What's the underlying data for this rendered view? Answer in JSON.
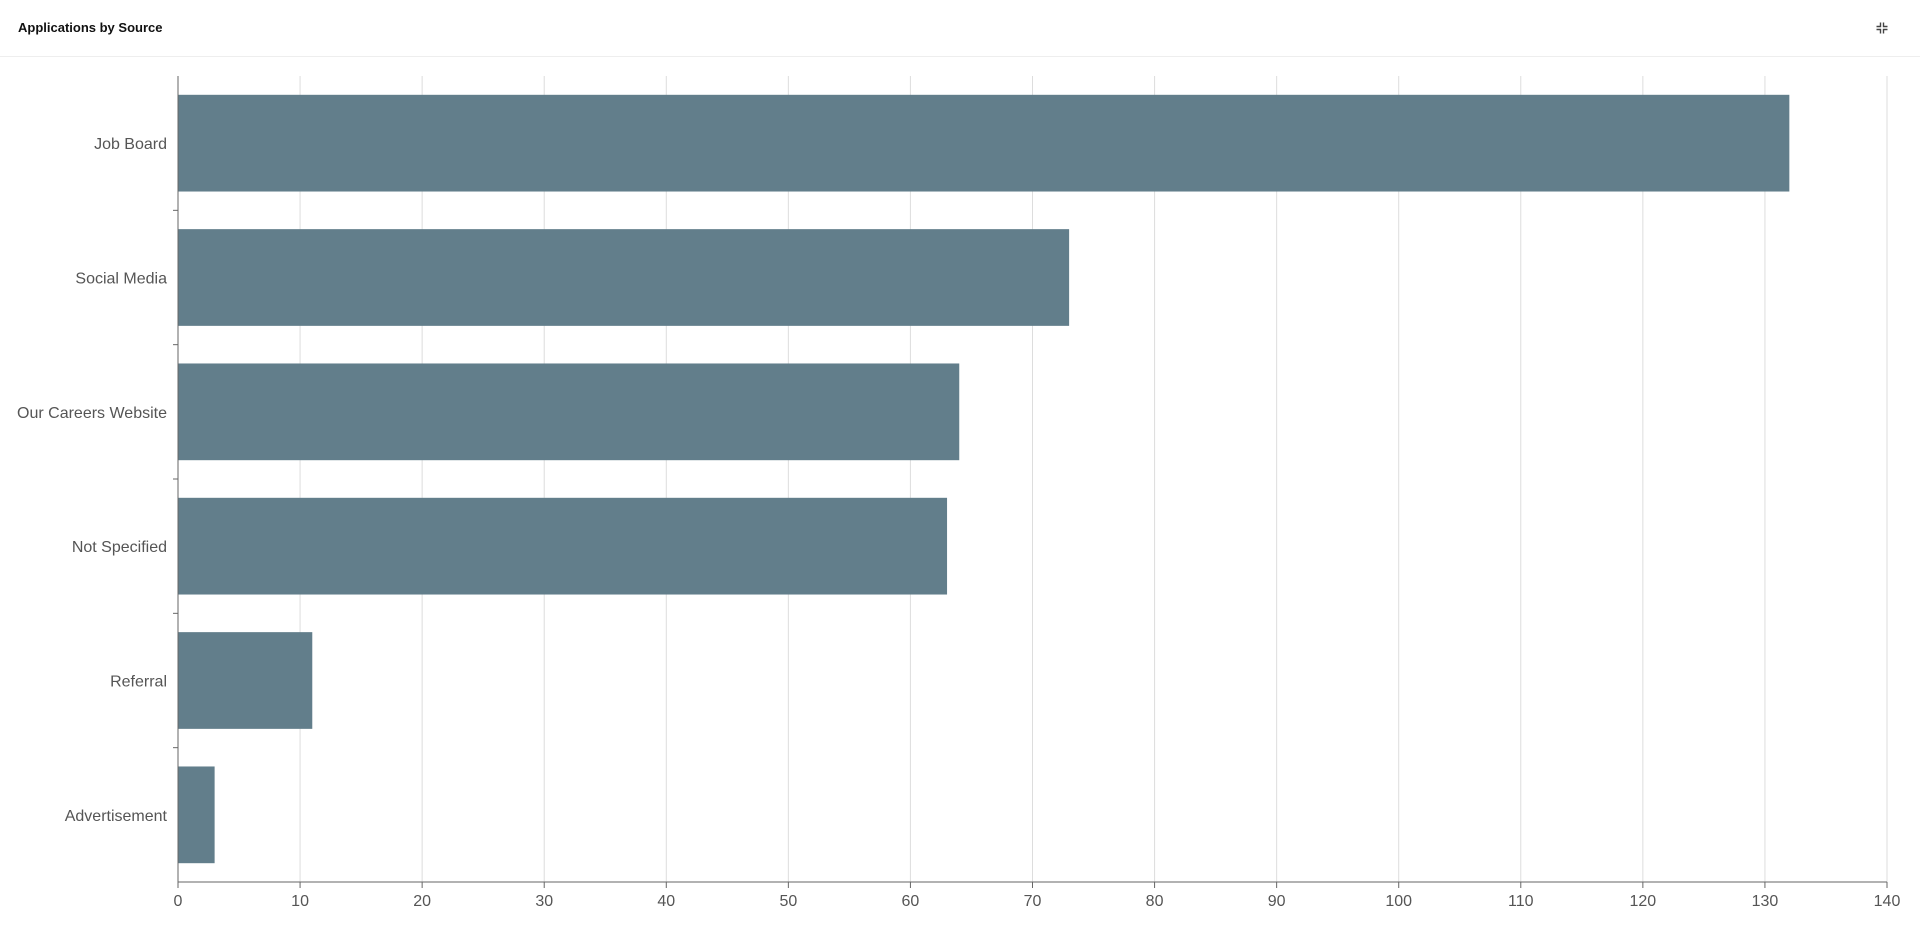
{
  "panel": {
    "title": "Applications by Source",
    "collapse_icon": "collapse-icon"
  },
  "chart_data": {
    "type": "bar",
    "orientation": "horizontal",
    "title": "",
    "xlabel": "",
    "ylabel": "",
    "categories": [
      "Job Board",
      "Social Media",
      "Our Careers Website",
      "Not Specified",
      "Referral",
      "Advertisement"
    ],
    "values": [
      132,
      73,
      64,
      63,
      11,
      3
    ],
    "xlim": [
      0,
      140
    ],
    "xticks": [
      0,
      10,
      20,
      30,
      40,
      50,
      60,
      70,
      80,
      90,
      100,
      110,
      120,
      130,
      140
    ],
    "grid": true,
    "bar_color": "#627e8b",
    "legend": "none"
  }
}
